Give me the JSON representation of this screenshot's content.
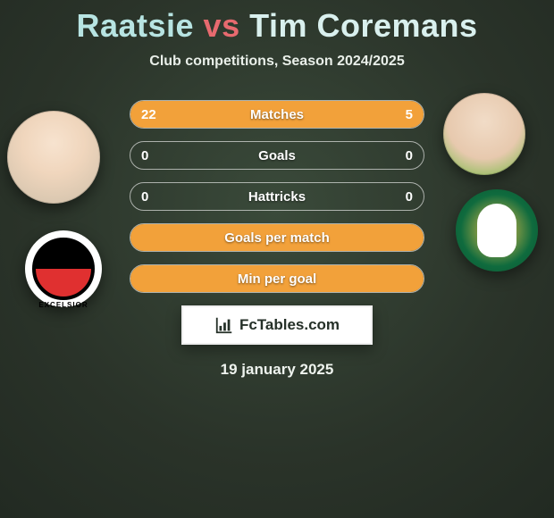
{
  "title": {
    "p1": "Raatsie",
    "vs": "vs",
    "p2": "Tim Coremans"
  },
  "subtitle": "Club competitions, Season 2024/2025",
  "date": "19 january 2025",
  "brand": "FcTables.com",
  "colors": {
    "bar_fill": "#f2a13a",
    "bar_border": "rgba(255,255,255,.6)",
    "title_p1": "#b7e4e2",
    "title_vs": "#e76a6f",
    "title_p2": "#d9f0ee"
  },
  "club_left_text": "EXCELSIOR",
  "bars": [
    {
      "label": "Matches",
      "left": "22",
      "right": "5",
      "leftPct": 81,
      "rightPct": 19,
      "showVals": true
    },
    {
      "label": "Goals",
      "left": "0",
      "right": "0",
      "leftPct": 0,
      "rightPct": 0,
      "showVals": true
    },
    {
      "label": "Hattricks",
      "left": "0",
      "right": "0",
      "leftPct": 0,
      "rightPct": 0,
      "showVals": true
    },
    {
      "label": "Goals per match",
      "left": "",
      "right": "",
      "leftPct": 100,
      "rightPct": 0,
      "showVals": false
    },
    {
      "label": "Min per goal",
      "left": "",
      "right": "",
      "leftPct": 100,
      "rightPct": 0,
      "showVals": false
    }
  ]
}
